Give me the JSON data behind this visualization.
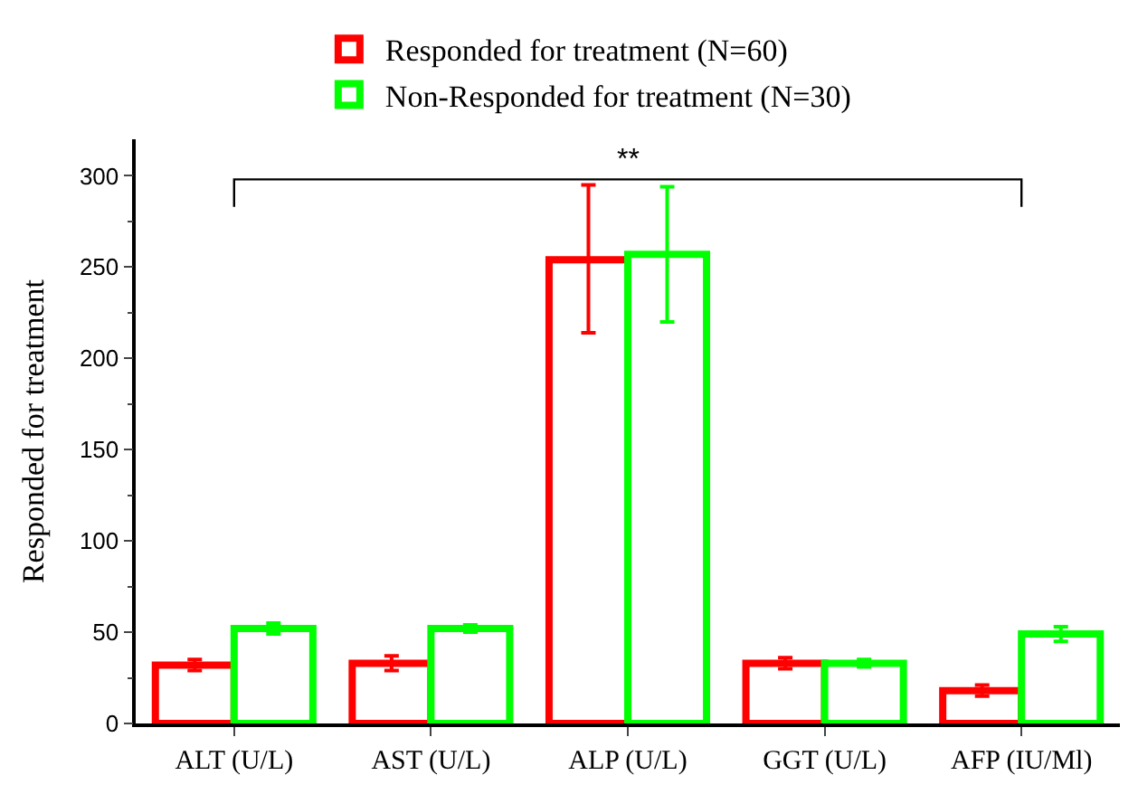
{
  "chart_data": {
    "type": "bar",
    "ylabel": "Responded for treatment",
    "categories": [
      "ALT (U/L)",
      "AST (U/L)",
      "ALP (U/L)",
      "GGT (U/L)",
      "AFP (IU/Ml)"
    ],
    "series": [
      {
        "name": "Responded for treatment (N=60)",
        "color": "#ff0000",
        "values": [
          32,
          33,
          254,
          33,
          18
        ],
        "errors": [
          3,
          4,
          [
            214,
            295
          ],
          3,
          3
        ]
      },
      {
        "name": "Non-Responded for treatment (N=30)",
        "color": "#00ff00",
        "values": [
          52,
          52,
          257,
          33,
          49
        ],
        "errors": [
          3,
          2,
          [
            220,
            294
          ],
          2,
          4
        ]
      }
    ],
    "ylim": [
      0,
      320
    ],
    "yticks": [
      0,
      50,
      100,
      150,
      200,
      250,
      300
    ],
    "annotations": [
      "**"
    ],
    "legend": "top left"
  }
}
